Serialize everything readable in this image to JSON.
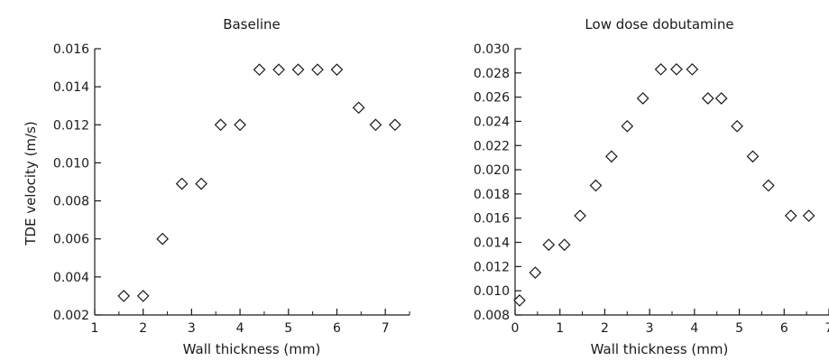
{
  "chart_data": [
    {
      "type": "scatter",
      "title": "Baseline",
      "xlabel": "Wall thickness (mm)",
      "ylabel": "TDE velocity (m/s)",
      "xlim": [
        1,
        7.5
      ],
      "ylim": [
        0.002,
        0.016
      ],
      "xticks": [
        "1",
        "2",
        "3",
        "4",
        "5",
        "6",
        "7"
      ],
      "yticks": [
        "0.002",
        "0.004",
        "0.006",
        "0.008",
        "0.010",
        "0.012",
        "0.014",
        "0.016"
      ],
      "grid": false,
      "marker": "open-diamond",
      "points": [
        [
          1.6,
          0.003
        ],
        [
          2.0,
          0.003
        ],
        [
          2.4,
          0.006
        ],
        [
          2.8,
          0.0089
        ],
        [
          3.2,
          0.0089
        ],
        [
          3.6,
          0.012
        ],
        [
          4.0,
          0.012
        ],
        [
          4.4,
          0.0149
        ],
        [
          4.8,
          0.0149
        ],
        [
          5.2,
          0.0149
        ],
        [
          5.6,
          0.0149
        ],
        [
          6.0,
          0.0149
        ],
        [
          6.45,
          0.0129
        ],
        [
          6.8,
          0.012
        ],
        [
          7.2,
          0.012
        ]
      ]
    },
    {
      "type": "scatter",
      "title": "Low dose dobutamine",
      "xlabel": "Wall thickness (mm)",
      "ylabel": "",
      "xlim": [
        0,
        7
      ],
      "ylim": [
        0.008,
        0.03
      ],
      "xticks": [
        "0",
        "1",
        "2",
        "3",
        "4",
        "5",
        "6",
        "7"
      ],
      "yticks": [
        "0.008",
        "0.010",
        "0.012",
        "0.014",
        "0.016",
        "0.018",
        "0.020",
        "0.022",
        "0.024",
        "0.026",
        "0.028",
        "0.030"
      ],
      "grid": false,
      "marker": "open-diamond",
      "points": [
        [
          0.1,
          0.0092
        ],
        [
          0.45,
          0.0115
        ],
        [
          0.75,
          0.0138
        ],
        [
          1.1,
          0.0138
        ],
        [
          1.45,
          0.0162
        ],
        [
          1.8,
          0.0187
        ],
        [
          2.15,
          0.0211
        ],
        [
          2.5,
          0.0236
        ],
        [
          2.85,
          0.0259
        ],
        [
          3.25,
          0.0283
        ],
        [
          3.6,
          0.0283
        ],
        [
          3.95,
          0.0283
        ],
        [
          4.3,
          0.0259
        ],
        [
          4.6,
          0.0259
        ],
        [
          4.95,
          0.0236
        ],
        [
          5.3,
          0.0211
        ],
        [
          5.65,
          0.0187
        ],
        [
          6.15,
          0.0162
        ],
        [
          6.55,
          0.0162
        ]
      ]
    }
  ]
}
